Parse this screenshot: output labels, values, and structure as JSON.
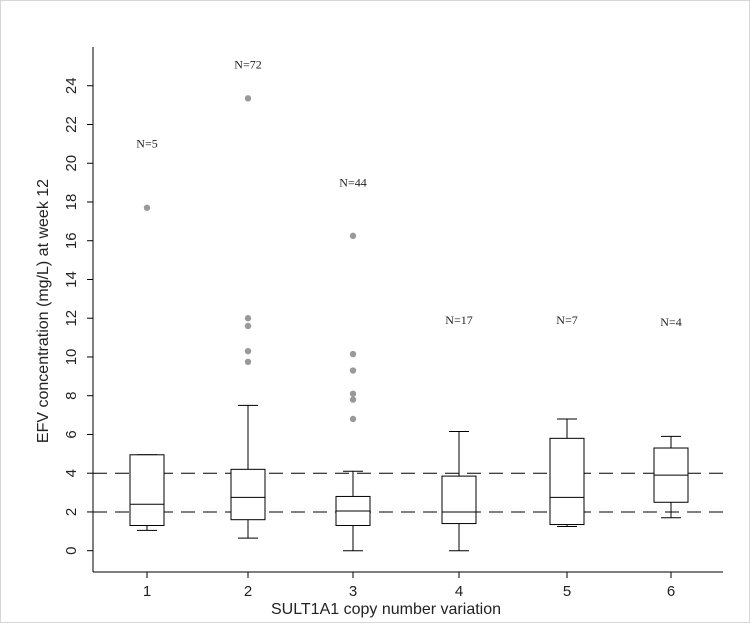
{
  "chart_data": {
    "type": "boxplot",
    "title": "",
    "xlabel": "SULT1A1 copy number variation",
    "ylabel": "EFV concentration (mg/L) at week 12",
    "categories": [
      "1",
      "2",
      "3",
      "4",
      "5",
      "6"
    ],
    "y_ticks": [
      "0",
      "2",
      "4",
      "6",
      "8",
      "10",
      "12",
      "14",
      "16",
      "18",
      "20",
      "22",
      "24"
    ],
    "ylim": [
      -1.1,
      26
    ],
    "reference_lines": [
      2,
      4
    ],
    "boxes": [
      {
        "category": "1",
        "n_label": "N=5",
        "n_label_y": 20.8,
        "whisker_low": 1.05,
        "q1": 1.3,
        "median": 2.4,
        "q3": 4.95,
        "whisker_high": 4.95,
        "outliers": [
          17.7
        ]
      },
      {
        "category": "2",
        "n_label": "N=72",
        "n_label_y": 24.9,
        "whisker_low": 0.65,
        "q1": 1.6,
        "median": 2.75,
        "q3": 4.2,
        "whisker_high": 7.5,
        "outliers": [
          23.35,
          12.0,
          11.6,
          10.3,
          9.75
        ]
      },
      {
        "category": "3",
        "n_label": "N=44",
        "n_label_y": 18.8,
        "whisker_low": 0.0,
        "q1": 1.3,
        "median": 2.05,
        "q3": 2.8,
        "whisker_high": 4.1,
        "outliers": [
          16.25,
          10.15,
          9.3,
          8.1,
          7.8,
          6.8
        ]
      },
      {
        "category": "4",
        "n_label": "N=17",
        "n_label_y": 11.7,
        "whisker_low": 0.0,
        "q1": 1.4,
        "median": 2.0,
        "q3": 3.85,
        "whisker_high": 6.15,
        "outliers": []
      },
      {
        "category": "5",
        "n_label": "N=7",
        "n_label_y": 11.7,
        "whisker_low": 1.25,
        "q1": 1.35,
        "median": 2.75,
        "q3": 5.8,
        "whisker_high": 6.8,
        "outliers": []
      },
      {
        "category": "6",
        "n_label": "N=4",
        "n_label_y": 11.6,
        "whisker_low": 1.7,
        "q1": 2.5,
        "median": 3.9,
        "q3": 5.3,
        "whisker_high": 5.9,
        "outliers": []
      }
    ],
    "colors": {
      "box": "#000000",
      "outlier": "#999999",
      "axis": "#000000",
      "reference": "#000000"
    }
  }
}
